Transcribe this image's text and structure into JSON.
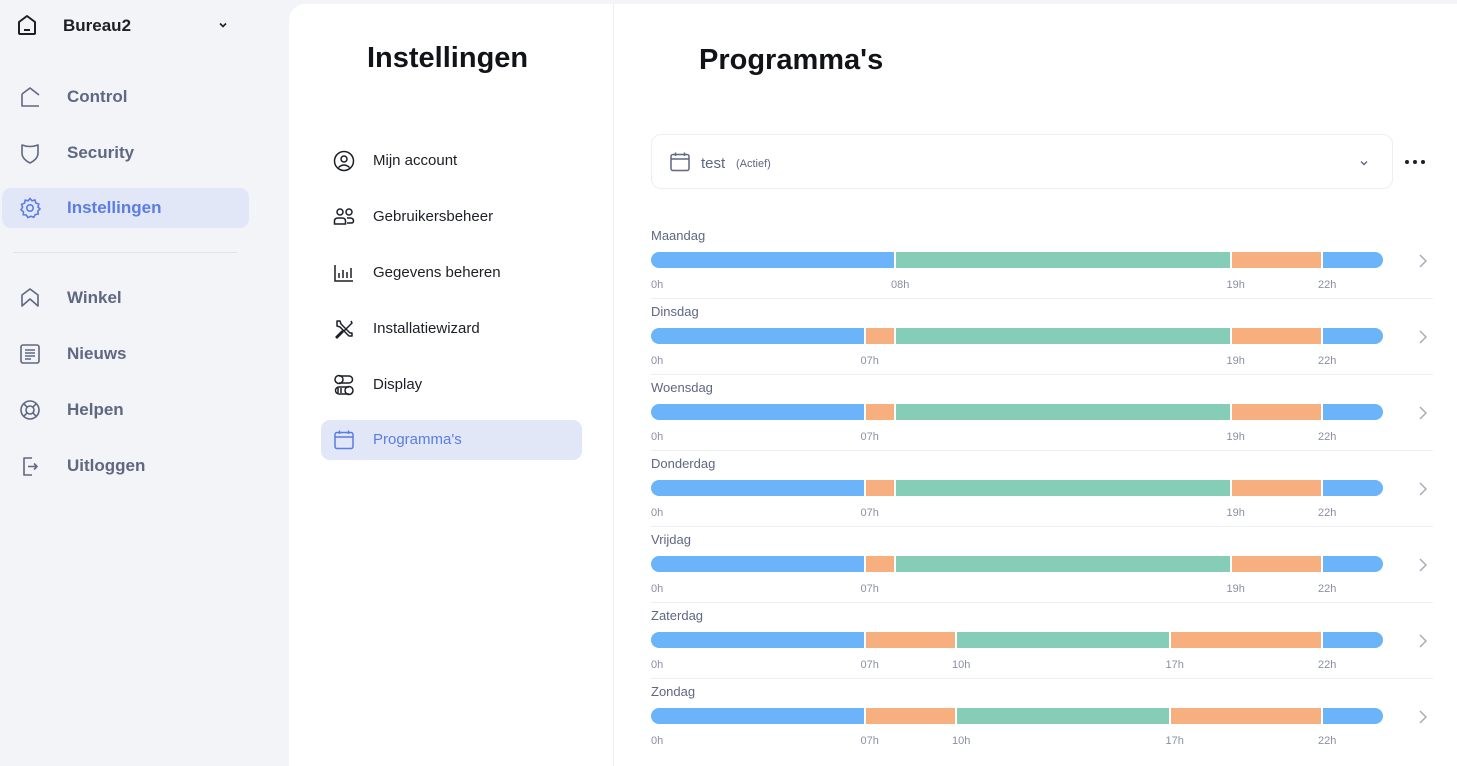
{
  "nav": {
    "home": {
      "title": "Bureau2",
      "icon": "house-icon"
    },
    "items_top": [
      {
        "label": "Control",
        "icon": "home-outline-icon",
        "active": false
      },
      {
        "label": "Security",
        "icon": "shield-icon",
        "active": false
      },
      {
        "label": "Instellingen",
        "icon": "gear-icon",
        "active": true
      }
    ],
    "items_bottom": [
      {
        "label": "Winkel",
        "icon": "store-icon"
      },
      {
        "label": "Nieuws",
        "icon": "news-icon"
      },
      {
        "label": "Helpen",
        "icon": "lifebuoy-icon"
      },
      {
        "label": "Uitloggen",
        "icon": "logout-icon"
      }
    ]
  },
  "settings": {
    "title": "Instellingen",
    "items": [
      {
        "label": "Mijn account",
        "icon": "user-circle-icon"
      },
      {
        "label": "Gebruikersbeheer",
        "icon": "users-icon"
      },
      {
        "label": "Gegevens beheren",
        "icon": "bar-chart-icon"
      },
      {
        "label": "Installatiewizard",
        "icon": "tools-icon"
      },
      {
        "label": "Display",
        "icon": "toggles-icon"
      },
      {
        "label": "Programma's",
        "icon": "calendar-icon",
        "active": true
      }
    ]
  },
  "programs": {
    "title": "Programma's",
    "selected": {
      "name": "test",
      "status": "(Actief)"
    },
    "colors": {
      "blue": "#6cb4fa",
      "orange": "#f7af7f",
      "green": "#86cdb8"
    },
    "days": [
      {
        "name": "Maandag",
        "segments": [
          [
            0,
            8,
            "blue"
          ],
          [
            8,
            19,
            "green"
          ],
          [
            19,
            22,
            "orange"
          ],
          [
            22,
            24,
            "blue"
          ]
        ],
        "ticks": [
          [
            0,
            "0h"
          ],
          [
            8,
            "08h"
          ],
          [
            19,
            "19h"
          ],
          [
            22,
            "22h"
          ]
        ]
      },
      {
        "name": "Dinsdag",
        "segments": [
          [
            0,
            7,
            "blue"
          ],
          [
            7,
            8,
            "orange"
          ],
          [
            8,
            19,
            "green"
          ],
          [
            19,
            22,
            "orange"
          ],
          [
            22,
            24,
            "blue"
          ]
        ],
        "ticks": [
          [
            0,
            "0h"
          ],
          [
            7,
            "07h"
          ],
          [
            19,
            "19h"
          ],
          [
            22,
            "22h"
          ]
        ]
      },
      {
        "name": "Woensdag",
        "segments": [
          [
            0,
            7,
            "blue"
          ],
          [
            7,
            8,
            "orange"
          ],
          [
            8,
            19,
            "green"
          ],
          [
            19,
            22,
            "orange"
          ],
          [
            22,
            24,
            "blue"
          ]
        ],
        "ticks": [
          [
            0,
            "0h"
          ],
          [
            7,
            "07h"
          ],
          [
            19,
            "19h"
          ],
          [
            22,
            "22h"
          ]
        ]
      },
      {
        "name": "Donderdag",
        "segments": [
          [
            0,
            7,
            "blue"
          ],
          [
            7,
            8,
            "orange"
          ],
          [
            8,
            19,
            "green"
          ],
          [
            19,
            22,
            "orange"
          ],
          [
            22,
            24,
            "blue"
          ]
        ],
        "ticks": [
          [
            0,
            "0h"
          ],
          [
            7,
            "07h"
          ],
          [
            19,
            "19h"
          ],
          [
            22,
            "22h"
          ]
        ]
      },
      {
        "name": "Vrijdag",
        "segments": [
          [
            0,
            7,
            "blue"
          ],
          [
            7,
            8,
            "orange"
          ],
          [
            8,
            19,
            "green"
          ],
          [
            19,
            22,
            "orange"
          ],
          [
            22,
            24,
            "blue"
          ]
        ],
        "ticks": [
          [
            0,
            "0h"
          ],
          [
            7,
            "07h"
          ],
          [
            19,
            "19h"
          ],
          [
            22,
            "22h"
          ]
        ]
      },
      {
        "name": "Zaterdag",
        "segments": [
          [
            0,
            7,
            "blue"
          ],
          [
            7,
            10,
            "orange"
          ],
          [
            10,
            17,
            "green"
          ],
          [
            17,
            22,
            "orange"
          ],
          [
            22,
            24,
            "blue"
          ]
        ],
        "ticks": [
          [
            0,
            "0h"
          ],
          [
            7,
            "07h"
          ],
          [
            10,
            "10h"
          ],
          [
            17,
            "17h"
          ],
          [
            22,
            "22h"
          ]
        ]
      },
      {
        "name": "Zondag",
        "segments": [
          [
            0,
            7,
            "blue"
          ],
          [
            7,
            10,
            "orange"
          ],
          [
            10,
            17,
            "green"
          ],
          [
            17,
            22,
            "orange"
          ],
          [
            22,
            24,
            "blue"
          ]
        ],
        "ticks": [
          [
            0,
            "0h"
          ],
          [
            7,
            "07h"
          ],
          [
            10,
            "10h"
          ],
          [
            17,
            "17h"
          ],
          [
            22,
            "22h"
          ]
        ]
      }
    ]
  }
}
